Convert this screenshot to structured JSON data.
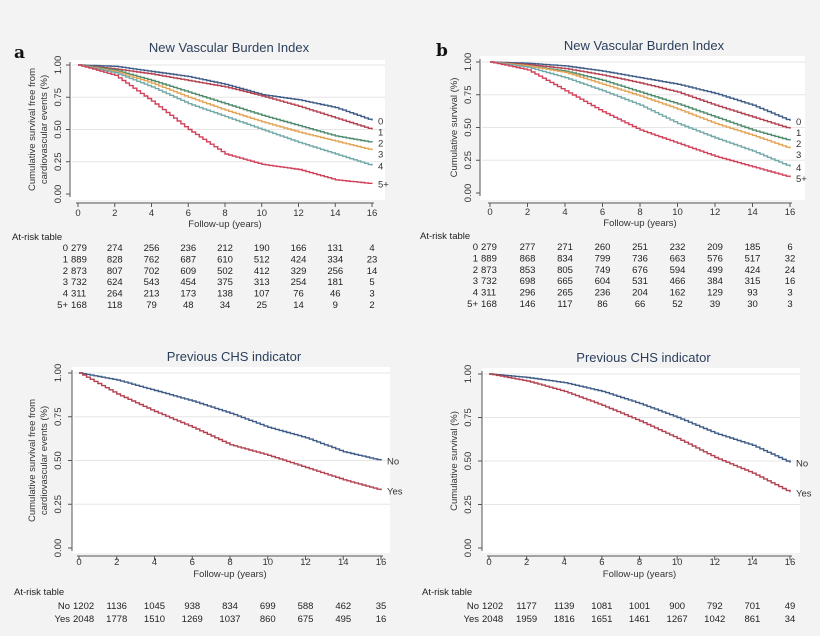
{
  "chart_data": [
    {
      "panel_letter": "a",
      "type": "line",
      "title": "New Vascular Burden Index",
      "xlabel": "Follow-up (years)",
      "ylabel": [
        "Cumulative survival free from",
        "cardiovascular events (%)"
      ],
      "xlim": [
        0,
        16
      ],
      "ylim": [
        0,
        1
      ],
      "xticks": [
        "0",
        "2",
        "4",
        "6",
        "8",
        "10",
        "12",
        "14",
        "16"
      ],
      "yticks": [
        "0.00",
        "0.25",
        "0.50",
        "0.75",
        "1.00"
      ],
      "grid": true,
      "x": [
        0,
        2,
        4,
        6,
        8,
        10,
        12,
        14,
        16
      ],
      "series": [
        {
          "name": "0",
          "color": "#3d5b86",
          "values": [
            1,
            0.99,
            0.95,
            0.91,
            0.85,
            0.77,
            0.73,
            0.67,
            0.57
          ]
        },
        {
          "name": "1",
          "color": "#b2404f",
          "values": [
            1,
            0.97,
            0.93,
            0.88,
            0.83,
            0.76,
            0.68,
            0.59,
            0.5
          ]
        },
        {
          "name": "2",
          "color": "#4e8a6c",
          "values": [
            1,
            0.96,
            0.88,
            0.79,
            0.7,
            0.61,
            0.53,
            0.45,
            0.4
          ]
        },
        {
          "name": "3",
          "color": "#e3a456",
          "values": [
            1,
            0.95,
            0.86,
            0.75,
            0.65,
            0.56,
            0.48,
            0.41,
            0.34
          ]
        },
        {
          "name": "4",
          "color": "#72a8a8",
          "values": [
            1,
            0.94,
            0.83,
            0.7,
            0.6,
            0.5,
            0.4,
            0.31,
            0.22
          ]
        },
        {
          "name": "5+",
          "color": "#d2415a",
          "values": [
            1,
            0.92,
            0.72,
            0.5,
            0.31,
            0.23,
            0.19,
            0.11,
            0.08
          ]
        }
      ],
      "risk_table": {
        "label": "At-risk table",
        "rows": [
          {
            "group": "0",
            "counts": [
              279,
              274,
              256,
              236,
              212,
              190,
              166,
              131,
              4
            ]
          },
          {
            "group": "1",
            "counts": [
              889,
              828,
              762,
              687,
              610,
              512,
              424,
              334,
              23
            ]
          },
          {
            "group": "2",
            "counts": [
              873,
              807,
              702,
              609,
              502,
              412,
              329,
              256,
              14
            ]
          },
          {
            "group": "3",
            "counts": [
              732,
              624,
              543,
              454,
              375,
              313,
              254,
              181,
              5
            ]
          },
          {
            "group": "4",
            "counts": [
              311,
              264,
              213,
              173,
              138,
              107,
              76,
              46,
              3
            ]
          },
          {
            "group": "5+",
            "counts": [
              168,
              118,
              79,
              48,
              34,
              25,
              14,
              9,
              2
            ]
          }
        ]
      }
    },
    {
      "panel_letter": "b",
      "type": "line",
      "title": "New Vascular Burden Index",
      "xlabel": "Follow-up (years)",
      "ylabel": [
        "Cumulative survival (%)"
      ],
      "xlim": [
        0,
        16
      ],
      "ylim": [
        0,
        1
      ],
      "xticks": [
        "0",
        "2",
        "4",
        "6",
        "8",
        "10",
        "12",
        "14",
        "16"
      ],
      "yticks": [
        "0.00",
        "0.25",
        "0.50",
        "0.75",
        "1.00"
      ],
      "grid": true,
      "x": [
        0,
        2,
        4,
        6,
        8,
        10,
        12,
        14,
        16
      ],
      "series": [
        {
          "name": "0",
          "color": "#3d5b86",
          "values": [
            1,
            0.99,
            0.97,
            0.93,
            0.88,
            0.83,
            0.76,
            0.67,
            0.55
          ]
        },
        {
          "name": "1",
          "color": "#b2404f",
          "values": [
            1,
            0.98,
            0.95,
            0.9,
            0.84,
            0.77,
            0.67,
            0.58,
            0.49
          ]
        },
        {
          "name": "2",
          "color": "#4e8a6c",
          "values": [
            1,
            0.97,
            0.93,
            0.86,
            0.77,
            0.68,
            0.58,
            0.48,
            0.4
          ]
        },
        {
          "name": "3",
          "color": "#e3a456",
          "values": [
            1,
            0.97,
            0.92,
            0.83,
            0.74,
            0.64,
            0.53,
            0.44,
            0.34
          ]
        },
        {
          "name": "4",
          "color": "#72a8a8",
          "values": [
            1,
            0.96,
            0.88,
            0.78,
            0.67,
            0.53,
            0.42,
            0.32,
            0.2
          ]
        },
        {
          "name": "5+",
          "color": "#d2415a",
          "values": [
            1,
            0.94,
            0.78,
            0.62,
            0.48,
            0.38,
            0.28,
            0.2,
            0.12
          ]
        }
      ],
      "risk_table": {
        "label": "At-risk table",
        "rows": [
          {
            "group": "0",
            "counts": [
              279,
              277,
              271,
              260,
              251,
              232,
              209,
              185,
              6
            ]
          },
          {
            "group": "1",
            "counts": [
              889,
              868,
              834,
              799,
              736,
              663,
              576,
              517,
              32
            ]
          },
          {
            "group": "2",
            "counts": [
              873,
              853,
              805,
              749,
              676,
              594,
              499,
              424,
              24
            ]
          },
          {
            "group": "3",
            "counts": [
              732,
              698,
              665,
              604,
              531,
              466,
              384,
              315,
              16
            ]
          },
          {
            "group": "4",
            "counts": [
              311,
              296,
              265,
              236,
              204,
              162,
              129,
              93,
              3
            ]
          },
          {
            "group": "5+",
            "counts": [
              168,
              146,
              117,
              86,
              66,
              52,
              39,
              30,
              3
            ]
          }
        ]
      }
    },
    {
      "panel_letter": "",
      "type": "line",
      "title": "Previous CHS indicator",
      "xlabel": "Follow-up (years)",
      "ylabel": [
        "Cumulative survival free from",
        "cardiovascular events (%)"
      ],
      "xlim": [
        0,
        16
      ],
      "ylim": [
        0,
        1
      ],
      "xticks": [
        "0",
        "2",
        "4",
        "6",
        "8",
        "10",
        "12",
        "14",
        "16"
      ],
      "yticks": [
        "0.00",
        "0.25",
        "0.50",
        "0.75",
        "1.00"
      ],
      "grid": true,
      "x": [
        0,
        2,
        4,
        6,
        8,
        10,
        12,
        14,
        16
      ],
      "series": [
        {
          "name": "No",
          "color": "#3d5b86",
          "values": [
            1,
            0.96,
            0.9,
            0.84,
            0.77,
            0.69,
            0.63,
            0.55,
            0.5
          ]
        },
        {
          "name": "Yes",
          "color": "#b2404f",
          "values": [
            1,
            0.88,
            0.78,
            0.69,
            0.59,
            0.53,
            0.46,
            0.39,
            0.33
          ]
        }
      ],
      "risk_table": {
        "label": "At-risk table",
        "rows": [
          {
            "group": "No",
            "counts": [
              1202,
              1136,
              1045,
              938,
              834,
              699,
              588,
              462,
              35
            ]
          },
          {
            "group": "Yes",
            "counts": [
              2048,
              1778,
              1510,
              1269,
              1037,
              860,
              675,
              495,
              16
            ]
          }
        ]
      }
    },
    {
      "panel_letter": "",
      "type": "line",
      "title": "Previous CHS indicator",
      "xlabel": "Follow-up (years)",
      "ylabel": [
        "Cumulative survival (%)"
      ],
      "xlim": [
        0,
        16
      ],
      "ylim": [
        0,
        1
      ],
      "xticks": [
        "0",
        "2",
        "4",
        "6",
        "8",
        "10",
        "12",
        "14",
        "16"
      ],
      "yticks": [
        "0.00",
        "0.25",
        "0.50",
        "0.75",
        "1.00"
      ],
      "grid": true,
      "x": [
        0,
        2,
        4,
        6,
        8,
        10,
        12,
        14,
        16
      ],
      "series": [
        {
          "name": "No",
          "color": "#3d5b86",
          "values": [
            1,
            0.98,
            0.95,
            0.9,
            0.83,
            0.75,
            0.66,
            0.59,
            0.49
          ]
        },
        {
          "name": "Yes",
          "color": "#b2404f",
          "values": [
            1,
            0.96,
            0.9,
            0.82,
            0.73,
            0.63,
            0.52,
            0.43,
            0.32
          ]
        }
      ],
      "risk_table": {
        "label": "At-risk table",
        "rows": [
          {
            "group": "No",
            "counts": [
              1202,
              1177,
              1139,
              1081,
              1001,
              900,
              792,
              701,
              49
            ]
          },
          {
            "group": "Yes",
            "counts": [
              2048,
              1959,
              1816,
              1651,
              1461,
              1267,
              1042,
              861,
              34
            ]
          }
        ]
      }
    }
  ]
}
